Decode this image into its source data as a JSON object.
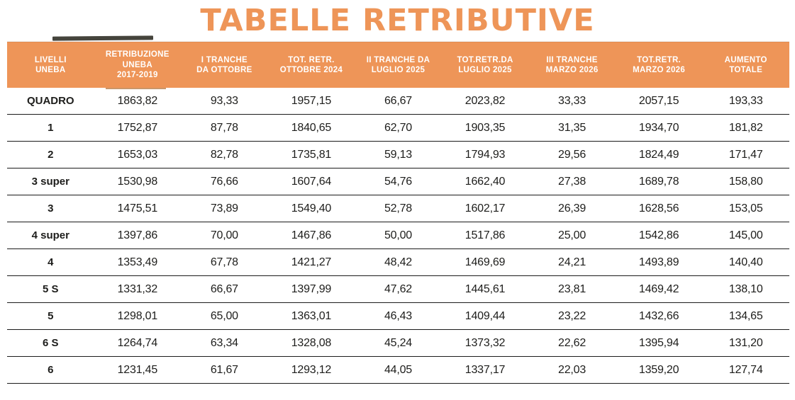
{
  "title": "TABELLE RETRIBUTIVE",
  "colors": {
    "accent": "#EE9558",
    "header_text": "#FFFFFF",
    "body_text": "#1D1D1B",
    "row_line": "#1B1B1B"
  },
  "table": {
    "headers": [
      "LIVELLI\nUNEBA",
      "RETRIBUZIONE\nUNEBA\n2017-2019",
      "I TRANCHE\nDA OTTOBRE",
      "TOT. RETR.\nOTTOBRE 2024",
      "II TRANCHE DA\nLUGLIO 2025",
      "TOT.RETR.DA\nLUGLIO 2025",
      "III TRANCHE\nMARZO 2026",
      "TOT.RETR.\nMARZO 2026",
      "AUMENTO\nTOTALE"
    ],
    "rows": [
      {
        "level": "QUADRO",
        "values": [
          "1863,82",
          "93,33",
          "1957,15",
          "66,67",
          "2023,82",
          "33,33",
          "2057,15",
          "193,33"
        ]
      },
      {
        "level": "1",
        "values": [
          "1752,87",
          "87,78",
          "1840,65",
          "62,70",
          "1903,35",
          "31,35",
          "1934,70",
          "181,82"
        ]
      },
      {
        "level": "2",
        "values": [
          "1653,03",
          "82,78",
          "1735,81",
          "59,13",
          "1794,93",
          "29,56",
          "1824,49",
          "171,47"
        ]
      },
      {
        "level": "3 super",
        "values": [
          "1530,98",
          "76,66",
          "1607,64",
          "54,76",
          "1662,40",
          "27,38",
          "1689,78",
          "158,80"
        ]
      },
      {
        "level": "3",
        "values": [
          "1475,51",
          "73,89",
          "1549,40",
          "52,78",
          "1602,17",
          "26,39",
          "1628,56",
          "153,05"
        ]
      },
      {
        "level": "4 super",
        "values": [
          "1397,86",
          "70,00",
          "1467,86",
          "50,00",
          "1517,86",
          "25,00",
          "1542,86",
          "145,00"
        ]
      },
      {
        "level": "4",
        "values": [
          "1353,49",
          "67,78",
          "1421,27",
          "48,42",
          "1469,69",
          "24,21",
          "1493,89",
          "140,40"
        ]
      },
      {
        "level": "5 S",
        "values": [
          "1331,32",
          "66,67",
          "1397,99",
          "47,62",
          "1445,61",
          "23,81",
          "1469,42",
          "138,10"
        ]
      },
      {
        "level": "5",
        "values": [
          "1298,01",
          "65,00",
          "1363,01",
          "46,43",
          "1409,44",
          "23,22",
          "1432,66",
          "134,65"
        ]
      },
      {
        "level": "6 S",
        "values": [
          "1264,74",
          "63,34",
          "1328,08",
          "45,24",
          "1373,32",
          "22,62",
          "1395,94",
          "131,20"
        ]
      },
      {
        "level": "6",
        "values": [
          "1231,45",
          "61,67",
          "1293,12",
          "44,05",
          "1337,17",
          "22,03",
          "1359,20",
          "127,74"
        ]
      }
    ]
  }
}
